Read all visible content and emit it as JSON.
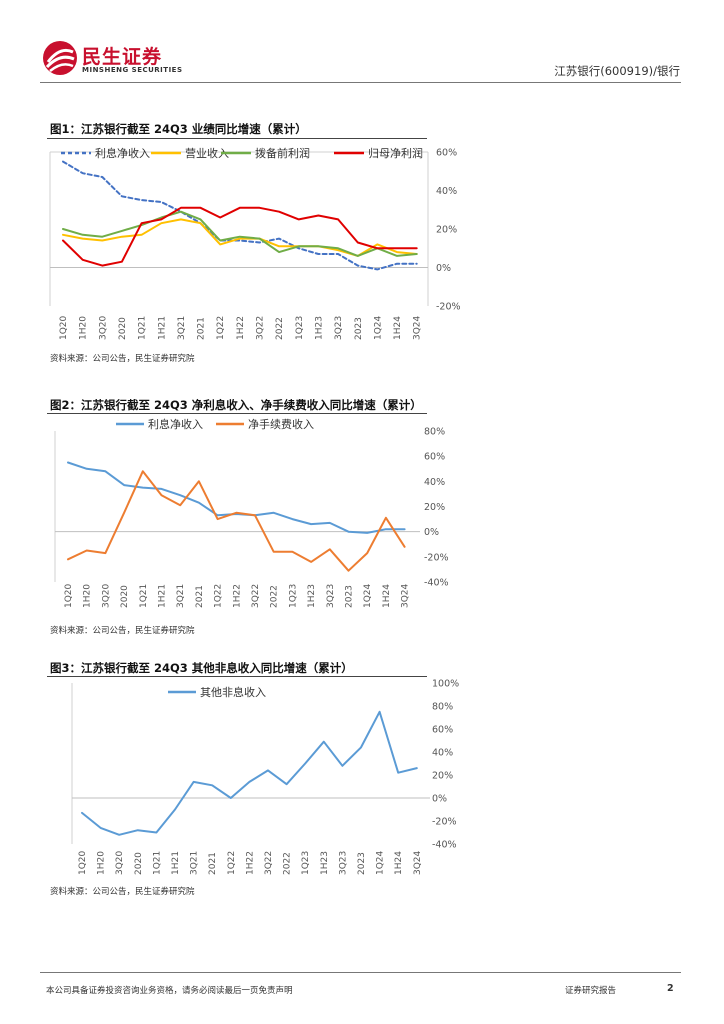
{
  "header": {
    "brand_cn": "民生证券",
    "brand_en": "MINSHENG SECURITIES",
    "doc_ref": "江苏银行(600919)/银行",
    "brand_color": "#c8102e"
  },
  "figures": [
    {
      "title": "图1：江苏银行截至 24Q3 业绩同比增速（累计）",
      "source": "资料来源：公司公告，民生证券研究院"
    },
    {
      "title": "图2：江苏银行截至 24Q3 净利息收入、净手续费收入同比增速（累计）",
      "source": "资料来源：公司公告，民生证券研究院"
    },
    {
      "title": "图3：江苏银行截至 24Q3 其他非息收入同比增速（累计）",
      "source": "资料来源：公司公告，民生证券研究院"
    }
  ],
  "footer": {
    "disclaimer": "本公司具备证券投资咨询业务资格，请务必阅读最后一页免责声明",
    "report_type": "证券研究报告",
    "page": "2"
  },
  "chart_data": [
    {
      "type": "line",
      "categories": [
        "1Q20",
        "1H20",
        "3Q20",
        "2020",
        "1Q21",
        "1H21",
        "3Q21",
        "2021",
        "1Q22",
        "1H22",
        "3Q22",
        "2022",
        "1Q23",
        "1H23",
        "3Q23",
        "2023",
        "1Q24",
        "1H24",
        "3Q24"
      ],
      "ylim": [
        -20,
        60
      ],
      "yticks": [
        -20,
        0,
        20,
        40,
        60
      ],
      "ytick_labels": [
        "-20%",
        "0%",
        "20%",
        "40%",
        "60%"
      ],
      "legend_position": "top",
      "grid": false,
      "series": [
        {
          "name": "利息净收入",
          "color": "#4472c4",
          "dashed": true,
          "values": [
            55,
            49,
            47,
            37,
            35,
            34,
            29,
            23,
            14,
            14,
            13,
            15,
            10,
            7,
            7,
            1,
            -1,
            2,
            2
          ]
        },
        {
          "name": "营业收入",
          "color": "#ffc000",
          "dashed": false,
          "values": [
            17,
            15,
            14,
            16,
            17,
            23,
            25,
            23,
            12,
            15,
            15,
            11,
            11,
            11,
            9,
            6,
            12,
            8,
            7
          ]
        },
        {
          "name": "拨备前利润",
          "color": "#70ad47",
          "dashed": false,
          "values": [
            20,
            17,
            16,
            19,
            22,
            26,
            29,
            25,
            14,
            16,
            15,
            8,
            11,
            11,
            10,
            6,
            10,
            6,
            7
          ]
        },
        {
          "name": "归母净利润",
          "color": "#e00000",
          "dashed": false,
          "values": [
            14,
            4,
            1,
            3,
            23,
            25,
            31,
            31,
            26,
            31,
            31,
            29,
            25,
            27,
            25,
            13,
            10,
            10,
            10
          ]
        }
      ]
    },
    {
      "type": "line",
      "categories": [
        "1Q20",
        "1H20",
        "3Q20",
        "2020",
        "1Q21",
        "1H21",
        "3Q21",
        "2021",
        "1Q22",
        "1H22",
        "3Q22",
        "2022",
        "1Q23",
        "1H23",
        "3Q23",
        "2023",
        "1Q24",
        "1H24",
        "3Q24"
      ],
      "ylim": [
        -40,
        80
      ],
      "yticks": [
        -40,
        -20,
        0,
        20,
        40,
        60,
        80
      ],
      "ytick_labels": [
        "-40%",
        "-20%",
        "0%",
        "20%",
        "40%",
        "60%",
        "80%"
      ],
      "legend_position": "top",
      "grid": false,
      "series": [
        {
          "name": "利息净收入",
          "color": "#5b9bd5",
          "values": [
            55,
            50,
            48,
            37,
            35,
            34,
            29,
            23,
            13,
            14,
            13,
            15,
            10,
            6,
            7,
            0,
            -1,
            2,
            2
          ]
        },
        {
          "name": "净手续费收入",
          "color": "#ed7d31",
          "values": [
            -22,
            -15,
            -17,
            15,
            48,
            29,
            21,
            40,
            10,
            15,
            13,
            -16,
            -16,
            -24,
            -14,
            -31,
            -17,
            11,
            -12
          ]
        }
      ]
    },
    {
      "type": "line",
      "categories": [
        "1Q20",
        "1H20",
        "3Q20",
        "2020",
        "1Q21",
        "1H21",
        "3Q21",
        "2021",
        "1Q22",
        "1H22",
        "3Q22",
        "2022",
        "1Q23",
        "1H23",
        "3Q23",
        "2023",
        "1Q24",
        "1H24",
        "3Q24"
      ],
      "ylim": [
        -40,
        100
      ],
      "yticks": [
        -40,
        -20,
        0,
        20,
        40,
        60,
        80,
        100
      ],
      "ytick_labels": [
        "-40%",
        "-20%",
        "0%",
        "20%",
        "40%",
        "60%",
        "80%",
        "100%"
      ],
      "legend_position": "top",
      "grid": false,
      "series": [
        {
          "name": "其他非息收入",
          "color": "#5b9bd5",
          "values": [
            -13,
            -26,
            -32,
            -28,
            -30,
            -10,
            14,
            11,
            0,
            14,
            24,
            12,
            30,
            49,
            28,
            44,
            75,
            22,
            26
          ]
        }
      ]
    }
  ]
}
